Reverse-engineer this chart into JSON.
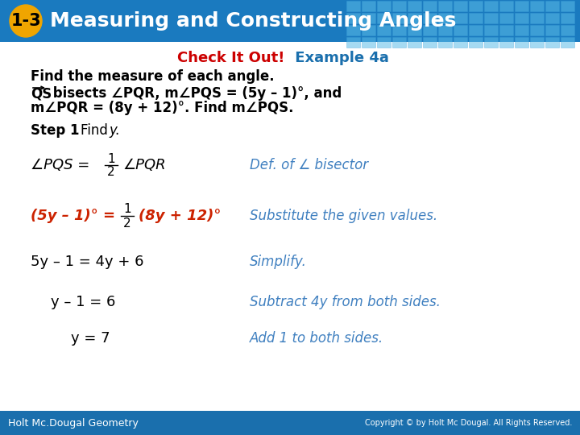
{
  "title_text": "Measuring and Constructing Angles",
  "title_badge": "1-3",
  "header_bg_color": "#1a7abf",
  "header_bg_color2": "#4baad4",
  "badge_color": "#f0a500",
  "check_it_out_color": "#cc0000",
  "example_color": "#1a6fad",
  "body_bg_color": "#ffffff",
  "math_black_color": "#000000",
  "math_red_color": "#cc2200",
  "annotation_color": "#4080c0",
  "footer_bg_color": "#1a6fad",
  "footer_text_left": "Holt Mc.Dougal Geometry",
  "footer_text_right": "Copyright © by Holt Mc Dougal. All Rights Reserved."
}
